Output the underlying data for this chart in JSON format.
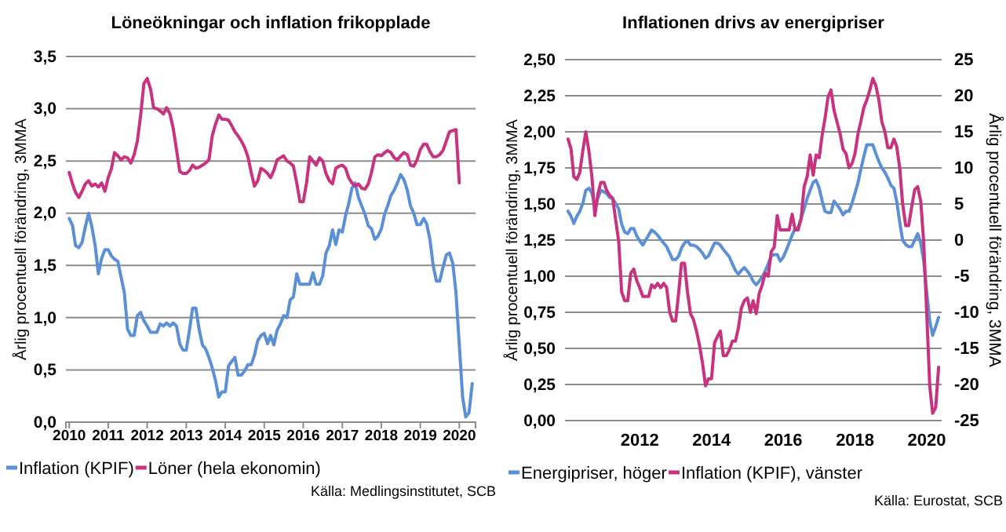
{
  "chart_data": [
    {
      "type": "line",
      "title": "Löneökningar och inflation frikopplade",
      "ylabel": "Årlig procentuell förändring, 3MMA",
      "x": [
        "2010-01",
        "2010-02",
        "2010-03",
        "2010-04",
        "2010-05",
        "2010-06",
        "2010-07",
        "2010-08",
        "2010-09",
        "2010-10",
        "2010-11",
        "2010-12",
        "2011-01",
        "2011-02",
        "2011-03",
        "2011-04",
        "2011-05",
        "2011-06",
        "2011-07",
        "2011-08",
        "2011-09",
        "2011-10",
        "2011-11",
        "2011-12",
        "2012-01",
        "2012-02",
        "2012-03",
        "2012-04",
        "2012-05",
        "2012-06",
        "2012-07",
        "2012-08",
        "2012-09",
        "2012-10",
        "2012-11",
        "2012-12",
        "2013-01",
        "2013-02",
        "2013-03",
        "2013-04",
        "2013-05",
        "2013-06",
        "2013-07",
        "2013-08",
        "2013-09",
        "2013-10",
        "2013-11",
        "2013-12",
        "2014-01",
        "2014-02",
        "2014-03",
        "2014-04",
        "2014-05",
        "2014-06",
        "2014-07",
        "2014-08",
        "2014-09",
        "2014-10",
        "2014-11",
        "2014-12",
        "2015-01",
        "2015-02",
        "2015-03",
        "2015-04",
        "2015-05",
        "2015-06",
        "2015-07",
        "2015-08",
        "2015-09",
        "2015-10",
        "2015-11",
        "2015-12",
        "2016-01",
        "2016-02",
        "2016-03",
        "2016-04",
        "2016-05",
        "2016-06",
        "2016-07",
        "2016-08",
        "2016-09",
        "2016-10",
        "2016-11",
        "2016-12",
        "2017-01",
        "2017-02",
        "2017-03",
        "2017-04",
        "2017-05",
        "2017-06",
        "2017-07",
        "2017-08",
        "2017-09",
        "2017-10",
        "2017-11",
        "2017-12",
        "2018-01",
        "2018-02",
        "2018-03",
        "2018-04",
        "2018-05",
        "2018-06",
        "2018-07",
        "2018-08",
        "2018-09",
        "2018-10",
        "2018-11",
        "2018-12",
        "2019-01",
        "2019-02",
        "2019-03",
        "2019-04",
        "2019-05",
        "2019-06",
        "2019-07",
        "2019-08",
        "2019-09",
        "2019-10",
        "2019-11",
        "2019-12",
        "2020-01",
        "2020-02",
        "2020-03",
        "2020-04",
        "2020-05"
      ],
      "series": [
        {
          "name": "Inflation (KPIF)",
          "color": "#5b8fd6",
          "values": [
            1.95,
            1.88,
            1.69,
            1.67,
            1.72,
            1.87,
            2.0,
            1.87,
            1.69,
            1.42,
            1.57,
            1.65,
            1.65,
            1.59,
            1.56,
            1.54,
            1.39,
            1.24,
            0.89,
            0.83,
            0.83,
            1.02,
            1.05,
            0.97,
            0.92,
            0.86,
            0.86,
            0.86,
            0.94,
            0.92,
            0.95,
            0.92,
            0.95,
            0.92,
            0.75,
            0.69,
            0.69,
            0.89,
            1.09,
            1.09,
            0.89,
            0.74,
            0.7,
            0.62,
            0.52,
            0.4,
            0.24,
            0.29,
            0.29,
            0.54,
            0.58,
            0.62,
            0.45,
            0.45,
            0.49,
            0.55,
            0.55,
            0.64,
            0.78,
            0.83,
            0.85,
            0.75,
            0.83,
            0.74,
            0.88,
            0.94,
            1.02,
            1.0,
            1.17,
            1.2,
            1.42,
            1.32,
            1.32,
            1.32,
            1.32,
            1.43,
            1.32,
            1.32,
            1.4,
            1.62,
            1.69,
            1.84,
            1.7,
            1.84,
            1.82,
            1.98,
            2.09,
            2.24,
            2.29,
            2.15,
            2.07,
            1.99,
            1.88,
            1.85,
            1.75,
            1.78,
            1.85,
            1.99,
            2.07,
            2.17,
            2.22,
            2.29,
            2.37,
            2.32,
            2.22,
            2.07,
            2.0,
            1.89,
            1.89,
            1.95,
            1.9,
            1.75,
            1.5,
            1.35,
            1.35,
            1.48,
            1.6,
            1.62,
            1.52,
            1.24,
            0.74,
            0.24,
            0.05,
            0.09,
            0.37
          ]
        },
        {
          "name": "Löner (hela ekonomin)",
          "color": "#c8327f",
          "values": [
            2.39,
            2.28,
            2.2,
            2.15,
            2.21,
            2.28,
            2.31,
            2.26,
            2.28,
            2.25,
            2.29,
            2.21,
            2.34,
            2.43,
            2.58,
            2.55,
            2.51,
            2.54,
            2.53,
            2.48,
            2.56,
            2.69,
            2.94,
            3.24,
            3.29,
            3.19,
            3.01,
            3.0,
            2.98,
            2.95,
            3.01,
            2.95,
            2.81,
            2.61,
            2.4,
            2.38,
            2.38,
            2.41,
            2.46,
            2.43,
            2.44,
            2.46,
            2.48,
            2.51,
            2.74,
            2.85,
            2.94,
            2.9,
            2.9,
            2.89,
            2.84,
            2.78,
            2.74,
            2.69,
            2.63,
            2.54,
            2.39,
            2.26,
            2.31,
            2.43,
            2.41,
            2.38,
            2.34,
            2.41,
            2.51,
            2.53,
            2.55,
            2.5,
            2.48,
            2.45,
            2.29,
            2.11,
            2.11,
            2.29,
            2.54,
            2.5,
            2.46,
            2.53,
            2.5,
            2.38,
            2.31,
            2.28,
            2.43,
            2.45,
            2.46,
            2.43,
            2.34,
            2.29,
            2.26,
            2.28,
            2.24,
            2.23,
            2.28,
            2.39,
            2.54,
            2.56,
            2.55,
            2.58,
            2.6,
            2.58,
            2.53,
            2.51,
            2.55,
            2.58,
            2.56,
            2.46,
            2.45,
            2.51,
            2.61,
            2.66,
            2.66,
            2.59,
            2.54,
            2.54,
            2.56,
            2.6,
            2.69,
            2.78,
            2.79,
            2.8,
            2.29,
            null,
            null,
            null,
            null
          ]
        }
      ],
      "xlim": [
        "2009-12",
        "2020-06"
      ],
      "xticks": [
        {
          "value": "2010-01",
          "label": "2010"
        },
        {
          "value": "2011-01",
          "label": "2011"
        },
        {
          "value": "2012-01",
          "label": "2012"
        },
        {
          "value": "2013-01",
          "label": "2013"
        },
        {
          "value": "2014-01",
          "label": "2014"
        },
        {
          "value": "2015-01",
          "label": "2015"
        },
        {
          "value": "2016-01",
          "label": "2016"
        },
        {
          "value": "2017-01",
          "label": "2017"
        },
        {
          "value": "2018-01",
          "label": "2018"
        },
        {
          "value": "2019-01",
          "label": "2019"
        },
        {
          "value": "2020-01",
          "label": "2020"
        }
      ],
      "ylim": [
        0,
        3.5
      ],
      "yticks": [
        {
          "value": 0,
          "label": "0,0"
        },
        {
          "value": 0.5,
          "label": "0,5"
        },
        {
          "value": 1,
          "label": "1,0"
        },
        {
          "value": 1.5,
          "label": "1,5"
        },
        {
          "value": 2,
          "label": "2,0"
        },
        {
          "value": 2.5,
          "label": "2,5"
        },
        {
          "value": 3,
          "label": "3,0"
        },
        {
          "value": 3.5,
          "label": "3,5"
        }
      ],
      "grid": "y",
      "legend": "bottom left",
      "marker": "none",
      "line_style": "solid",
      "annotations": [
        "Källa: Medlingsinstitutet, SCB"
      ]
    },
    {
      "type": "line",
      "title": "Inflationen drivs av energipriser",
      "ylabel": "Årlig procentuell förändring, 3MMA",
      "y2label": "Årlig procentuell förändring, 3MMA",
      "x": [
        "2010-01",
        "2010-02",
        "2010-03",
        "2010-04",
        "2010-05",
        "2010-06",
        "2010-07",
        "2010-08",
        "2010-09",
        "2010-10",
        "2010-11",
        "2010-12",
        "2011-01",
        "2011-02",
        "2011-03",
        "2011-04",
        "2011-05",
        "2011-06",
        "2011-07",
        "2011-08",
        "2011-09",
        "2011-10",
        "2011-11",
        "2011-12",
        "2012-01",
        "2012-02",
        "2012-03",
        "2012-04",
        "2012-05",
        "2012-06",
        "2012-07",
        "2012-08",
        "2012-09",
        "2012-10",
        "2012-11",
        "2012-12",
        "2013-01",
        "2013-02",
        "2013-03",
        "2013-04",
        "2013-05",
        "2013-06",
        "2013-07",
        "2013-08",
        "2013-09",
        "2013-10",
        "2013-11",
        "2013-12",
        "2014-01",
        "2014-02",
        "2014-03",
        "2014-04",
        "2014-05",
        "2014-06",
        "2014-07",
        "2014-08",
        "2014-09",
        "2014-10",
        "2014-11",
        "2014-12",
        "2015-01",
        "2015-02",
        "2015-03",
        "2015-04",
        "2015-05",
        "2015-06",
        "2015-07",
        "2015-08",
        "2015-09",
        "2015-10",
        "2015-11",
        "2015-12",
        "2016-01",
        "2016-02",
        "2016-03",
        "2016-04",
        "2016-05",
        "2016-06",
        "2016-07",
        "2016-08",
        "2016-09",
        "2016-10",
        "2016-11",
        "2016-12",
        "2017-01",
        "2017-02",
        "2017-03",
        "2017-04",
        "2017-05",
        "2017-06",
        "2017-07",
        "2017-08",
        "2017-09",
        "2017-10",
        "2017-11",
        "2017-12",
        "2018-01",
        "2018-02",
        "2018-03",
        "2018-04",
        "2018-05",
        "2018-06",
        "2018-07",
        "2018-08",
        "2018-09",
        "2018-10",
        "2018-11",
        "2018-12",
        "2019-01",
        "2019-02",
        "2019-03",
        "2019-04",
        "2019-05",
        "2019-06",
        "2019-07",
        "2019-08",
        "2019-09",
        "2019-10",
        "2019-11",
        "2019-12",
        "2020-01",
        "2020-02",
        "2020-03",
        "2020-04",
        "2020-05"
      ],
      "series": [
        {
          "name": "Energipriser, höger",
          "color": "#5b8fd6",
          "axis": "y2",
          "values": [
            4.0,
            3.3,
            2.3,
            3.3,
            4.0,
            5.1,
            6.9,
            7.2,
            6.5,
            4.7,
            5.8,
            6.9,
            6.7,
            6.4,
            5.9,
            5.7,
            5.1,
            4.3,
            2.2,
            1.1,
            0.9,
            1.6,
            1.6,
            0.6,
            -0.1,
            -0.7,
            0,
            0.7,
            1.4,
            1.1,
            0.7,
            0.1,
            -0.4,
            -0.9,
            -1.8,
            -2.7,
            -2.7,
            -2.2,
            -1.1,
            -0.4,
            -0.1,
            -0.7,
            -0.7,
            -0.9,
            -1.3,
            -1.8,
            -2.5,
            -2.2,
            -1.3,
            -0.4,
            -0.4,
            -0.7,
            -1.3,
            -1.8,
            -2.3,
            -3.3,
            -4.2,
            -4.7,
            -4.2,
            -3.8,
            -4.3,
            -4.9,
            -5.7,
            -6.2,
            -5.7,
            -5.1,
            -4.3,
            -3.3,
            -2.2,
            -2.0,
            -2.0,
            -2.9,
            -2.4,
            -1.4,
            -0.4,
            0.7,
            1.6,
            1.8,
            3.0,
            4.3,
            5.8,
            6.9,
            8.0,
            8.3,
            7.2,
            5.4,
            4.0,
            3.8,
            3.8,
            5.4,
            4.9,
            4.3,
            3.5,
            4.0,
            4.0,
            5.1,
            6.5,
            8.0,
            9.8,
            11.6,
            13.2,
            13.2,
            13.2,
            12.0,
            10.9,
            10.0,
            9.4,
            8.6,
            7.6,
            7.2,
            5.4,
            2.5,
            0,
            -0.6,
            -0.9,
            -0.9,
            0,
            0.9,
            -0.4,
            -2.9,
            -7.2,
            -11.2,
            -13.2,
            -12.0,
            -10.7
          ]
        },
        {
          "name": "Inflation (KPIF), vänster",
          "color": "#c8327f",
          "values": [
            1.95,
            1.88,
            1.69,
            1.67,
            1.72,
            1.87,
            2.0,
            1.87,
            1.69,
            1.42,
            1.57,
            1.65,
            1.65,
            1.59,
            1.56,
            1.54,
            1.39,
            1.24,
            0.89,
            0.83,
            0.83,
            1.02,
            1.05,
            0.97,
            0.92,
            0.86,
            0.86,
            0.86,
            0.94,
            0.92,
            0.95,
            0.92,
            0.95,
            0.92,
            0.75,
            0.69,
            0.69,
            0.89,
            1.09,
            1.09,
            0.89,
            0.74,
            0.7,
            0.62,
            0.52,
            0.4,
            0.24,
            0.29,
            0.29,
            0.54,
            0.58,
            0.62,
            0.45,
            0.45,
            0.49,
            0.55,
            0.55,
            0.64,
            0.78,
            0.83,
            0.85,
            0.75,
            0.83,
            0.74,
            0.88,
            0.94,
            1.02,
            1.0,
            1.17,
            1.2,
            1.42,
            1.32,
            1.32,
            1.32,
            1.32,
            1.43,
            1.32,
            1.32,
            1.4,
            1.62,
            1.69,
            1.84,
            1.7,
            1.84,
            1.82,
            1.98,
            2.09,
            2.24,
            2.29,
            2.15,
            2.07,
            1.99,
            1.88,
            1.85,
            1.75,
            1.78,
            1.85,
            1.99,
            2.07,
            2.17,
            2.22,
            2.29,
            2.37,
            2.32,
            2.22,
            2.07,
            2.0,
            1.89,
            1.89,
            1.95,
            1.9,
            1.75,
            1.5,
            1.35,
            1.35,
            1.48,
            1.6,
            1.62,
            1.52,
            1.24,
            0.74,
            0.24,
            0.05,
            0.09,
            0.37
          ]
        }
      ],
      "xlim": [
        "2009-12",
        "2020-06"
      ],
      "xticks": [
        {
          "value": "2012-01",
          "label": "2012"
        },
        {
          "value": "2014-01",
          "label": "2014"
        },
        {
          "value": "2016-01",
          "label": "2016"
        },
        {
          "value": "2018-01",
          "label": "2018"
        },
        {
          "value": "2020-01",
          "label": "2020"
        }
      ],
      "ylim": [
        0,
        2.5
      ],
      "yticks": [
        {
          "value": 0,
          "label": "0,00"
        },
        {
          "value": 0.25,
          "label": "0,25"
        },
        {
          "value": 0.5,
          "label": "0,50"
        },
        {
          "value": 0.75,
          "label": "0,75"
        },
        {
          "value": 1,
          "label": "1,00"
        },
        {
          "value": 1.25,
          "label": "1,25"
        },
        {
          "value": 1.5,
          "label": "1,50"
        },
        {
          "value": 1.75,
          "label": "1,75"
        },
        {
          "value": 2,
          "label": "2,00"
        },
        {
          "value": 2.25,
          "label": "2,25"
        },
        {
          "value": 2.5,
          "label": "2,50"
        }
      ],
      "y2lim": [
        -25,
        25
      ],
      "y2ticks": [
        -25,
        -20,
        -15,
        -10,
        -5,
        0,
        5,
        10,
        15,
        20,
        25
      ],
      "grid": "y",
      "legend": "bottom left",
      "marker": "none",
      "line_style": "solid",
      "annotations": [
        "Källa: Eurostat, SCB"
      ]
    }
  ]
}
